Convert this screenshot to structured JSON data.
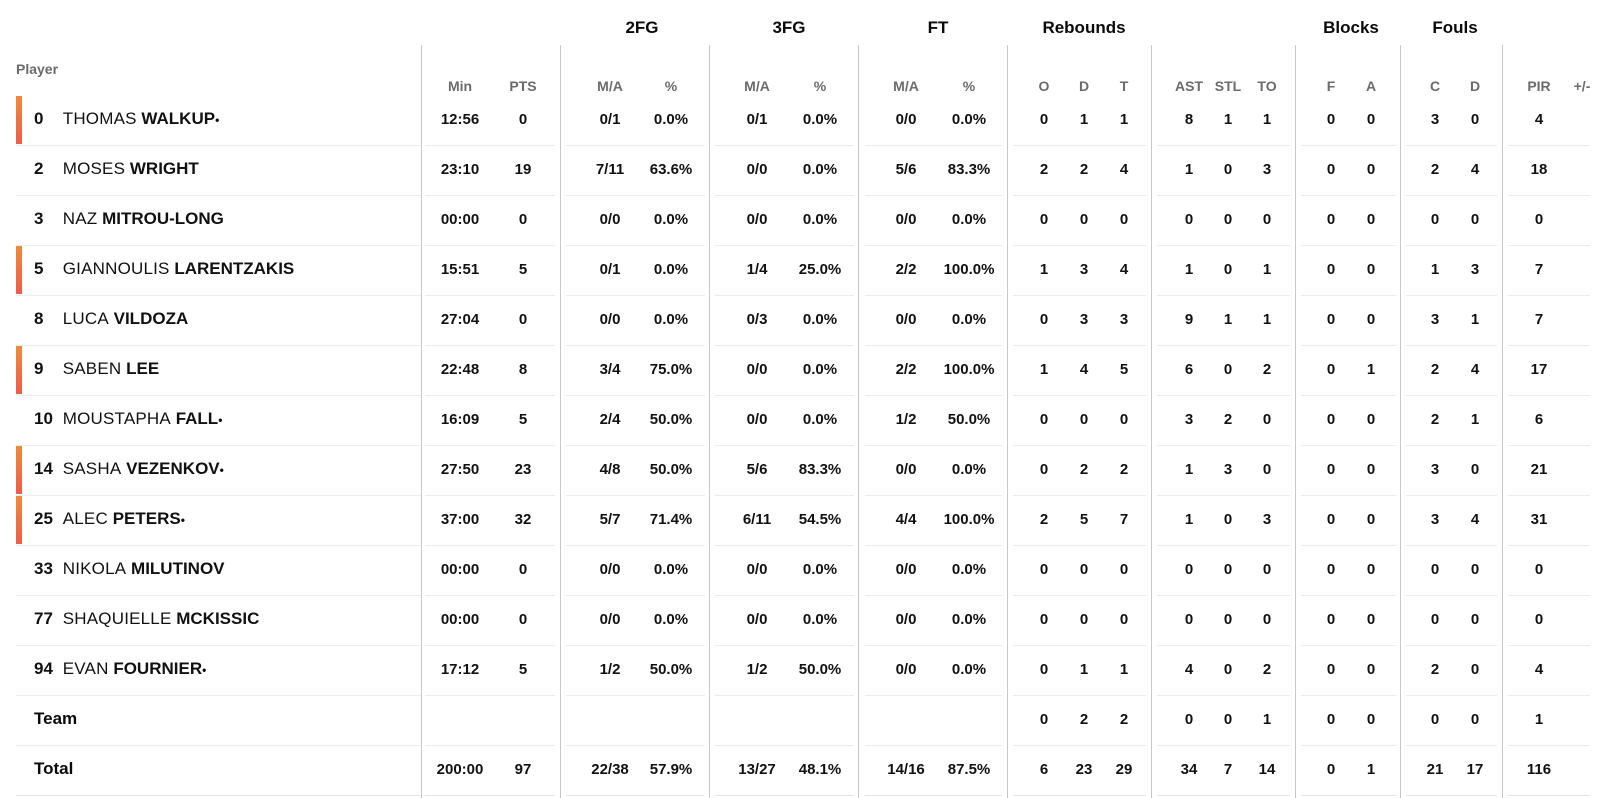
{
  "group_headers": {
    "fg2": "2FG",
    "fg3": "3FG",
    "ft": "FT",
    "rebounds": "Rebounds",
    "blocks": "Blocks",
    "fouls": "Fouls"
  },
  "player_header": "Player",
  "column_headers": {
    "min": "Min",
    "pts": "PTS",
    "fg2_ma": "M/A",
    "fg2_pct": "%",
    "fg3_ma": "M/A",
    "fg3_pct": "%",
    "ft_ma": "M/A",
    "ft_pct": "%",
    "reb_o": "O",
    "reb_d": "D",
    "reb_t": "T",
    "ast": "AST",
    "stl": "STL",
    "to": "TO",
    "blk_f": "F",
    "blk_a": "A",
    "foul_c": "C",
    "foul_d": "D",
    "pir": "PIR",
    "pm": "+/-"
  },
  "starter_marker": "•",
  "players": [
    {
      "number": "0",
      "first": "THOMAS",
      "last": "WALKUP",
      "starter": true,
      "stats": {
        "min": "12:56",
        "pts": "0",
        "fg2_ma": "0/1",
        "fg2_pct": "0.0%",
        "fg3_ma": "0/1",
        "fg3_pct": "0.0%",
        "ft_ma": "0/0",
        "ft_pct": "0.0%",
        "reb_o": "0",
        "reb_d": "1",
        "reb_t": "1",
        "ast": "8",
        "stl": "1",
        "to": "1",
        "blk_f": "0",
        "blk_a": "0",
        "foul_c": "3",
        "foul_d": "0",
        "pir": "4",
        "pm": ""
      }
    },
    {
      "number": "2",
      "first": "MOSES",
      "last": "WRIGHT",
      "starter": false,
      "stats": {
        "min": "23:10",
        "pts": "19",
        "fg2_ma": "7/11",
        "fg2_pct": "63.6%",
        "fg3_ma": "0/0",
        "fg3_pct": "0.0%",
        "ft_ma": "5/6",
        "ft_pct": "83.3%",
        "reb_o": "2",
        "reb_d": "2",
        "reb_t": "4",
        "ast": "1",
        "stl": "0",
        "to": "3",
        "blk_f": "0",
        "blk_a": "0",
        "foul_c": "2",
        "foul_d": "4",
        "pir": "18",
        "pm": ""
      }
    },
    {
      "number": "3",
      "first": "NAZ",
      "last": "MITROU-LONG",
      "starter": false,
      "stats": {
        "min": "00:00",
        "pts": "0",
        "fg2_ma": "0/0",
        "fg2_pct": "0.0%",
        "fg3_ma": "0/0",
        "fg3_pct": "0.0%",
        "ft_ma": "0/0",
        "ft_pct": "0.0%",
        "reb_o": "0",
        "reb_d": "0",
        "reb_t": "0",
        "ast": "0",
        "stl": "0",
        "to": "0",
        "blk_f": "0",
        "blk_a": "0",
        "foul_c": "0",
        "foul_d": "0",
        "pir": "0",
        "pm": ""
      }
    },
    {
      "number": "5",
      "first": "GIANNOULIS",
      "last": "LARENTZAKIS",
      "starter": false,
      "stats": {
        "min": "15:51",
        "pts": "5",
        "fg2_ma": "0/1",
        "fg2_pct": "0.0%",
        "fg3_ma": "1/4",
        "fg3_pct": "25.0%",
        "ft_ma": "2/2",
        "ft_pct": "100.0%",
        "reb_o": "1",
        "reb_d": "3",
        "reb_t": "4",
        "ast": "1",
        "stl": "0",
        "to": "1",
        "blk_f": "0",
        "blk_a": "0",
        "foul_c": "1",
        "foul_d": "3",
        "pir": "7",
        "pm": ""
      }
    },
    {
      "number": "8",
      "first": "LUCA",
      "last": "VILDOZA",
      "starter": false,
      "stats": {
        "min": "27:04",
        "pts": "0",
        "fg2_ma": "0/0",
        "fg2_pct": "0.0%",
        "fg3_ma": "0/3",
        "fg3_pct": "0.0%",
        "ft_ma": "0/0",
        "ft_pct": "0.0%",
        "reb_o": "0",
        "reb_d": "3",
        "reb_t": "3",
        "ast": "9",
        "stl": "1",
        "to": "1",
        "blk_f": "0",
        "blk_a": "0",
        "foul_c": "3",
        "foul_d": "1",
        "pir": "7",
        "pm": ""
      }
    },
    {
      "number": "9",
      "first": "SABEN",
      "last": "LEE",
      "starter": false,
      "stats": {
        "min": "22:48",
        "pts": "8",
        "fg2_ma": "3/4",
        "fg2_pct": "75.0%",
        "fg3_ma": "0/0",
        "fg3_pct": "0.0%",
        "ft_ma": "2/2",
        "ft_pct": "100.0%",
        "reb_o": "1",
        "reb_d": "4",
        "reb_t": "5",
        "ast": "6",
        "stl": "0",
        "to": "2",
        "blk_f": "0",
        "blk_a": "1",
        "foul_c": "2",
        "foul_d": "4",
        "pir": "17",
        "pm": ""
      }
    },
    {
      "number": "10",
      "first": "MOUSTAPHA",
      "last": "FALL",
      "starter": true,
      "stats": {
        "min": "16:09",
        "pts": "5",
        "fg2_ma": "2/4",
        "fg2_pct": "50.0%",
        "fg3_ma": "0/0",
        "fg3_pct": "0.0%",
        "ft_ma": "1/2",
        "ft_pct": "50.0%",
        "reb_o": "0",
        "reb_d": "0",
        "reb_t": "0",
        "ast": "3",
        "stl": "2",
        "to": "0",
        "blk_f": "0",
        "blk_a": "0",
        "foul_c": "2",
        "foul_d": "1",
        "pir": "6",
        "pm": ""
      }
    },
    {
      "number": "14",
      "first": "SASHA",
      "last": "VEZENKOV",
      "starter": true,
      "stats": {
        "min": "27:50",
        "pts": "23",
        "fg2_ma": "4/8",
        "fg2_pct": "50.0%",
        "fg3_ma": "5/6",
        "fg3_pct": "83.3%",
        "ft_ma": "0/0",
        "ft_pct": "0.0%",
        "reb_o": "0",
        "reb_d": "2",
        "reb_t": "2",
        "ast": "1",
        "stl": "3",
        "to": "0",
        "blk_f": "0",
        "blk_a": "0",
        "foul_c": "3",
        "foul_d": "0",
        "pir": "21",
        "pm": ""
      }
    },
    {
      "number": "25",
      "first": "ALEC",
      "last": "PETERS",
      "starter": true,
      "stats": {
        "min": "37:00",
        "pts": "32",
        "fg2_ma": "5/7",
        "fg2_pct": "71.4%",
        "fg3_ma": "6/11",
        "fg3_pct": "54.5%",
        "ft_ma": "4/4",
        "ft_pct": "100.0%",
        "reb_o": "2",
        "reb_d": "5",
        "reb_t": "7",
        "ast": "1",
        "stl": "0",
        "to": "3",
        "blk_f": "0",
        "blk_a": "0",
        "foul_c": "3",
        "foul_d": "4",
        "pir": "31",
        "pm": ""
      }
    },
    {
      "number": "33",
      "first": "NIKOLA",
      "last": "MILUTINOV",
      "starter": false,
      "stats": {
        "min": "00:00",
        "pts": "0",
        "fg2_ma": "0/0",
        "fg2_pct": "0.0%",
        "fg3_ma": "0/0",
        "fg3_pct": "0.0%",
        "ft_ma": "0/0",
        "ft_pct": "0.0%",
        "reb_o": "0",
        "reb_d": "0",
        "reb_t": "0",
        "ast": "0",
        "stl": "0",
        "to": "0",
        "blk_f": "0",
        "blk_a": "0",
        "foul_c": "0",
        "foul_d": "0",
        "pir": "0",
        "pm": ""
      }
    },
    {
      "number": "77",
      "first": "SHAQUIELLE",
      "last": "MCKISSIC",
      "starter": false,
      "stats": {
        "min": "00:00",
        "pts": "0",
        "fg2_ma": "0/0",
        "fg2_pct": "0.0%",
        "fg3_ma": "0/0",
        "fg3_pct": "0.0%",
        "ft_ma": "0/0",
        "ft_pct": "0.0%",
        "reb_o": "0",
        "reb_d": "0",
        "reb_t": "0",
        "ast": "0",
        "stl": "0",
        "to": "0",
        "blk_f": "0",
        "blk_a": "0",
        "foul_c": "0",
        "foul_d": "0",
        "pir": "0",
        "pm": ""
      }
    },
    {
      "number": "94",
      "first": "EVAN",
      "last": "FOURNIER",
      "starter": true,
      "stats": {
        "min": "17:12",
        "pts": "5",
        "fg2_ma": "1/2",
        "fg2_pct": "50.0%",
        "fg3_ma": "1/2",
        "fg3_pct": "50.0%",
        "ft_ma": "0/0",
        "ft_pct": "0.0%",
        "reb_o": "0",
        "reb_d": "1",
        "reb_t": "1",
        "ast": "4",
        "stl": "0",
        "to": "2",
        "blk_f": "0",
        "blk_a": "0",
        "foul_c": "2",
        "foul_d": "0",
        "pir": "4",
        "pm": ""
      }
    }
  ],
  "team": {
    "label": "Team",
    "stats": {
      "min": "",
      "pts": "",
      "fg2_ma": "",
      "fg2_pct": "",
      "fg3_ma": "",
      "fg3_pct": "",
      "ft_ma": "",
      "ft_pct": "",
      "reb_o": "0",
      "reb_d": "2",
      "reb_t": "2",
      "ast": "0",
      "stl": "0",
      "to": "1",
      "blk_f": "0",
      "blk_a": "0",
      "foul_c": "0",
      "foul_d": "0",
      "pir": "1",
      "pm": ""
    }
  },
  "total": {
    "label": "Total",
    "stats": {
      "min": "200:00",
      "pts": "97",
      "fg2_ma": "22/38",
      "fg2_pct": "57.9%",
      "fg3_ma": "13/27",
      "fg3_pct": "48.1%",
      "ft_ma": "14/16",
      "ft_pct": "87.5%",
      "reb_o": "6",
      "reb_d": "23",
      "reb_t": "29",
      "ast": "34",
      "stl": "7",
      "to": "14",
      "blk_f": "0",
      "blk_a": "1",
      "foul_c": "21",
      "foul_d": "17",
      "pir": "116",
      "pm": ""
    }
  },
  "colors": {
    "starter_bar_top": "#f08a3a",
    "starter_bar_bottom": "#ee5c4a",
    "header_gray": "#6b6b6b",
    "divider": "#c8c8c8"
  }
}
